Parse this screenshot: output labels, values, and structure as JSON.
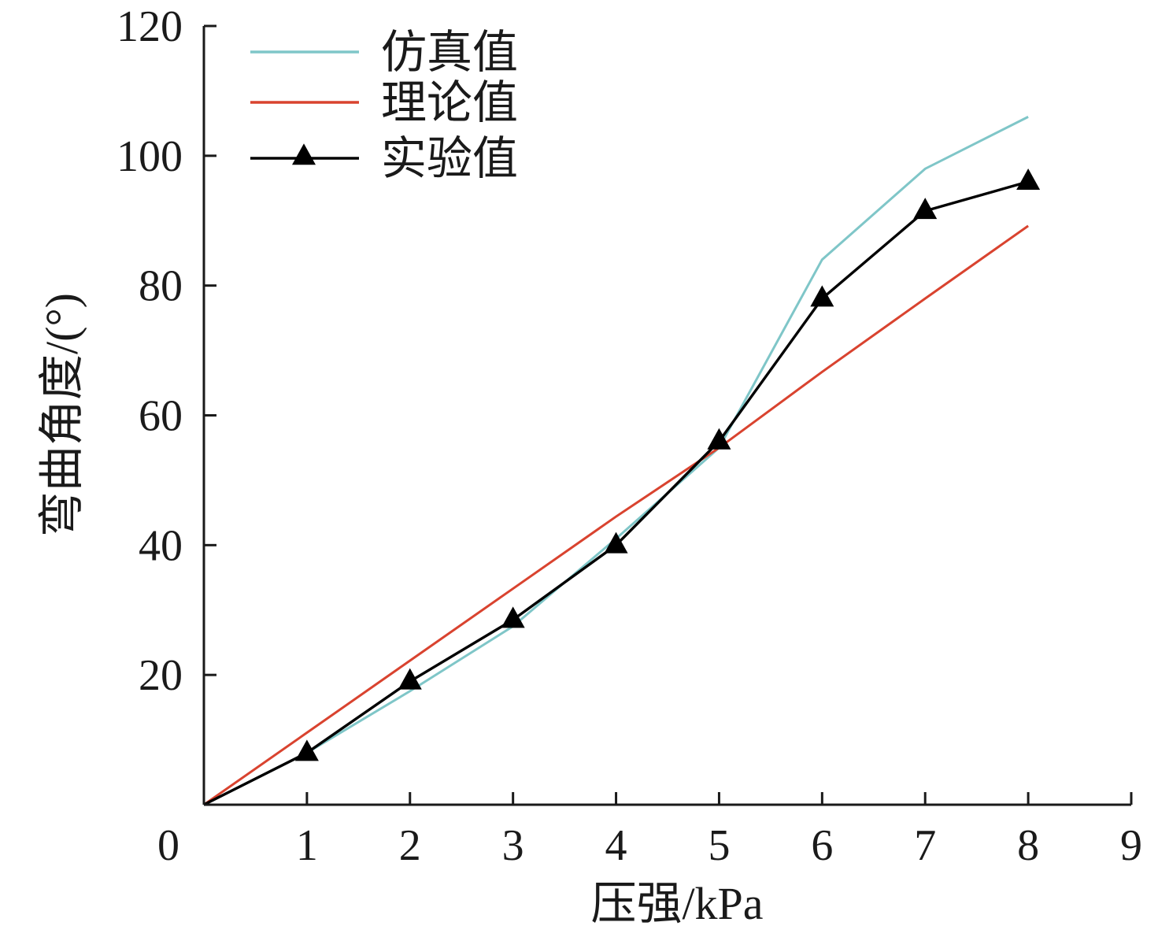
{
  "chart_data": {
    "type": "line",
    "xlabel": "压强/kPa",
    "ylabel": "弯曲角度/(°)",
    "xlim": [
      0,
      9
    ],
    "ylim": [
      0,
      120
    ],
    "xticks": [
      0,
      1,
      2,
      3,
      4,
      5,
      6,
      7,
      8,
      9
    ],
    "yticks": [
      20,
      40,
      60,
      80,
      100,
      120
    ],
    "grid": false,
    "legend_position": "top-left",
    "series": [
      {
        "name": "仿真值",
        "color": "#7fc6c8",
        "marker": "none",
        "x": [
          0,
          1,
          2,
          3,
          4,
          5,
          6,
          7,
          8
        ],
        "y": [
          0,
          8.0,
          17.5,
          27.5,
          41.0,
          55.0,
          84.0,
          98.0,
          106.0
        ]
      },
      {
        "name": "理论值",
        "color": "#d9432f",
        "marker": "none",
        "x": [
          0,
          1,
          2,
          3,
          4,
          5,
          6,
          7,
          8
        ],
        "y": [
          0,
          11.1,
          22.2,
          33.3,
          44.4,
          55.0,
          66.7,
          78.0,
          89.2
        ]
      },
      {
        "name": "实验值",
        "color": "#000000",
        "marker": "triangle",
        "x": [
          0,
          1,
          2,
          3,
          4,
          5,
          6,
          7,
          8
        ],
        "y": [
          0,
          8.0,
          19.0,
          28.5,
          40.0,
          56.0,
          78.0,
          91.5,
          96.0
        ]
      }
    ]
  }
}
